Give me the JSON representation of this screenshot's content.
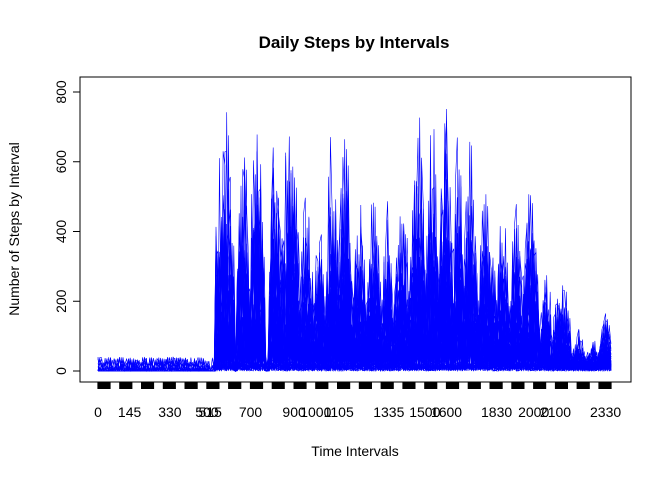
{
  "chart_data": {
    "type": "line",
    "title": "Daily Steps by Intervals",
    "xlabel": "Time Intervals",
    "ylabel": "Number of Steps by Interval",
    "ylim": [
      0,
      810
    ],
    "yticks": [
      0,
      200,
      400,
      600,
      800
    ],
    "x_tick_labels": [
      "0",
      "145",
      "330",
      "500",
      "515",
      "700",
      "900",
      "1000",
      "1105",
      "1335",
      "1500",
      "1600",
      "1830",
      "2000",
      "2100",
      "2330"
    ],
    "series_color": "#0000ff",
    "series_count": 61,
    "grid": false,
    "legend": "none",
    "x_categories_note": "intervals 0 to 2355 in 5-minute steps, plotted as categories",
    "baseline_window": [
      0,
      2355
    ],
    "active_periods": [
      {
        "from": 530,
        "to": 620,
        "peak": 790
      },
      {
        "from": 630,
        "to": 700,
        "peak": 760
      },
      {
        "from": 705,
        "to": 745,
        "peak": 785
      },
      {
        "from": 800,
        "to": 830,
        "peak": 770
      },
      {
        "from": 835,
        "to": 920,
        "peak": 806
      },
      {
        "from": 925,
        "to": 1000,
        "peak": 560
      },
      {
        "from": 1005,
        "to": 1035,
        "peak": 515
      },
      {
        "from": 1040,
        "to": 1110,
        "peak": 760
      },
      {
        "from": 1115,
        "to": 1145,
        "peak": 785
      },
      {
        "from": 1150,
        "to": 1230,
        "peak": 530
      },
      {
        "from": 1235,
        "to": 1310,
        "peak": 540
      },
      {
        "from": 1315,
        "to": 1345,
        "peak": 520
      },
      {
        "from": 1350,
        "to": 1430,
        "peak": 545
      },
      {
        "from": 1435,
        "to": 1515,
        "peak": 780
      },
      {
        "from": 1520,
        "to": 1550,
        "peak": 785
      },
      {
        "from": 1555,
        "to": 1630,
        "peak": 785
      },
      {
        "from": 1635,
        "to": 1700,
        "peak": 735
      },
      {
        "from": 1705,
        "to": 1740,
        "peak": 740
      },
      {
        "from": 1745,
        "to": 1830,
        "peak": 565
      },
      {
        "from": 1835,
        "to": 1910,
        "peak": 540
      },
      {
        "from": 1915,
        "to": 1945,
        "peak": 545
      },
      {
        "from": 1950,
        "to": 2030,
        "peak": 590
      },
      {
        "from": 2035,
        "to": 2110,
        "peak": 310
      },
      {
        "from": 2115,
        "to": 2200,
        "peak": 300
      },
      {
        "from": 2205,
        "to": 2240,
        "peak": 130
      },
      {
        "from": 2245,
        "to": 2320,
        "peak": 100
      },
      {
        "from": 2325,
        "to": 2355,
        "peak": 180
      }
    ]
  }
}
